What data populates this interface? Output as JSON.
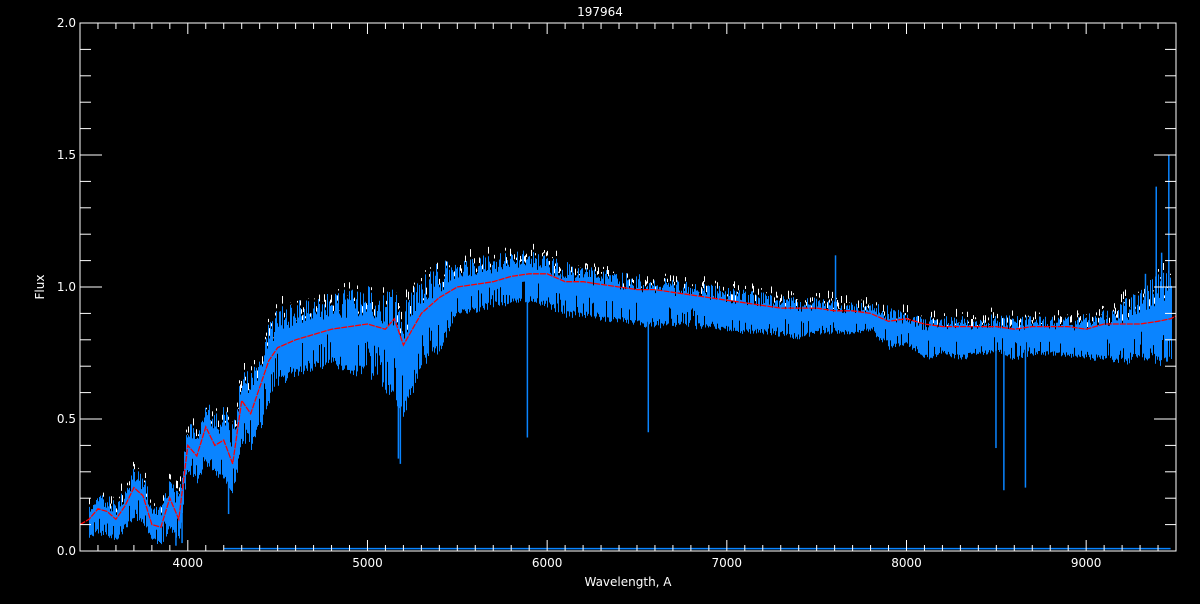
{
  "chart_data": {
    "type": "line",
    "title": "197964",
    "xlabel": "Wavelength, A",
    "ylabel": "Flux",
    "xlim": [
      3400,
      9500
    ],
    "ylim": [
      0.0,
      2.0
    ],
    "xticks": [
      4000,
      5000,
      6000,
      7000,
      8000,
      9000
    ],
    "xtick_labels": [
      "4000",
      "5000",
      "6000",
      "7000",
      "8000",
      "9000"
    ],
    "yticks": [
      0.0,
      0.5,
      1.0,
      1.5,
      2.0
    ],
    "ytick_labels": [
      "0.0",
      "0.5",
      "1.0",
      "1.5",
      "2.0"
    ],
    "grid": false,
    "colors": {
      "background": "#000000",
      "axes": "#ffffff",
      "observed": "#0a84ff",
      "model": "#ff0000",
      "comparison": "#ffffff"
    },
    "x": [
      3450,
      3500,
      3550,
      3600,
      3650,
      3700,
      3750,
      3800,
      3850,
      3900,
      3950,
      4000,
      4050,
      4100,
      4150,
      4200,
      4250,
      4300,
      4350,
      4400,
      4450,
      4500,
      4600,
      4700,
      4800,
      4900,
      5000,
      5100,
      5150,
      5200,
      5300,
      5400,
      5500,
      5600,
      5700,
      5800,
      5900,
      6000,
      6100,
      6200,
      6300,
      6400,
      6500,
      6600,
      6700,
      6800,
      6900,
      7000,
      7100,
      7200,
      7300,
      7400,
      7500,
      7600,
      7700,
      7800,
      7900,
      8000,
      8100,
      8200,
      8300,
      8400,
      8500,
      8600,
      8700,
      8800,
      8900,
      9000,
      9100,
      9200,
      9300,
      9400,
      9470
    ],
    "series": [
      {
        "style": "red dashed",
        "values": [
          0.12,
          0.16,
          0.15,
          0.12,
          0.17,
          0.24,
          0.21,
          0.1,
          0.09,
          0.2,
          0.12,
          0.4,
          0.36,
          0.47,
          0.4,
          0.42,
          0.33,
          0.57,
          0.52,
          0.62,
          0.72,
          0.77,
          0.8,
          0.82,
          0.84,
          0.85,
          0.86,
          0.84,
          0.88,
          0.78,
          0.9,
          0.96,
          1.0,
          1.01,
          1.02,
          1.04,
          1.05,
          1.05,
          1.02,
          1.02,
          1.01,
          1.0,
          0.99,
          0.99,
          0.98,
          0.97,
          0.96,
          0.95,
          0.94,
          0.93,
          0.92,
          0.92,
          0.92,
          0.91,
          0.91,
          0.9,
          0.87,
          0.88,
          0.86,
          0.85,
          0.85,
          0.85,
          0.85,
          0.84,
          0.85,
          0.85,
          0.85,
          0.84,
          0.86,
          0.86,
          0.86,
          0.87,
          0.88
        ]
      },
      {
        "style": "blue envelope lower",
        "values": [
          0.05,
          0.06,
          0.05,
          0.04,
          0.07,
          0.12,
          0.1,
          0.03,
          0.02,
          0.08,
          0.03,
          0.3,
          0.25,
          0.32,
          0.28,
          0.25,
          0.2,
          0.4,
          0.38,
          0.45,
          0.55,
          0.62,
          0.66,
          0.68,
          0.7,
          0.66,
          0.66,
          0.6,
          0.55,
          0.5,
          0.68,
          0.75,
          0.88,
          0.9,
          0.92,
          0.93,
          0.94,
          0.92,
          0.88,
          0.88,
          0.87,
          0.86,
          0.85,
          0.84,
          0.85,
          0.84,
          0.84,
          0.83,
          0.82,
          0.82,
          0.81,
          0.8,
          0.82,
          0.82,
          0.82,
          0.83,
          0.76,
          0.78,
          0.72,
          0.74,
          0.72,
          0.74,
          0.75,
          0.72,
          0.74,
          0.74,
          0.73,
          0.72,
          0.72,
          0.7,
          0.72,
          0.7,
          0.7
        ]
      },
      {
        "style": "blue envelope upper",
        "values": [
          0.18,
          0.22,
          0.22,
          0.18,
          0.25,
          0.32,
          0.3,
          0.18,
          0.18,
          0.28,
          0.22,
          0.5,
          0.48,
          0.58,
          0.52,
          0.55,
          0.48,
          0.7,
          0.68,
          0.78,
          0.88,
          0.92,
          0.95,
          0.97,
          0.98,
          1.0,
          1.02,
          0.98,
          1.0,
          0.95,
          1.04,
          1.1,
          1.1,
          1.12,
          1.12,
          1.14,
          1.14,
          1.12,
          1.1,
          1.08,
          1.07,
          1.06,
          1.05,
          1.04,
          1.03,
          1.02,
          1.01,
          1.0,
          0.99,
          0.98,
          0.97,
          0.96,
          0.96,
          0.95,
          0.94,
          0.94,
          0.93,
          0.9,
          0.89,
          0.89,
          0.89,
          0.89,
          0.9,
          0.89,
          0.89,
          0.89,
          0.89,
          0.9,
          0.92,
          0.95,
          1.0,
          1.05,
          1.1
        ]
      }
    ],
    "absorption_lines": [
      {
        "x": 3934,
        "y": 0.02
      },
      {
        "x": 3968,
        "y": 0.03
      },
      {
        "x": 4227,
        "y": 0.14
      },
      {
        "x": 5172,
        "y": 0.35
      },
      {
        "x": 5183,
        "y": 0.33
      },
      {
        "x": 5890,
        "y": 0.43
      },
      {
        "x": 6563,
        "y": 0.45
      },
      {
        "x": 8498,
        "y": 0.39
      },
      {
        "x": 8542,
        "y": 0.23
      },
      {
        "x": 8662,
        "y": 0.24
      }
    ],
    "emission_spikes": [
      {
        "x": 7605,
        "y": 1.12
      },
      {
        "x": 9270,
        "y": 0.97
      },
      {
        "x": 9330,
        "y": 1.05
      },
      {
        "x": 9390,
        "y": 1.38
      },
      {
        "x": 9420,
        "y": 1.13
      },
      {
        "x": 9460,
        "y": 1.5
      }
    ],
    "error_spectrum": {
      "x_start": 4200,
      "x_end": 9470,
      "level": 0.005
    }
  }
}
